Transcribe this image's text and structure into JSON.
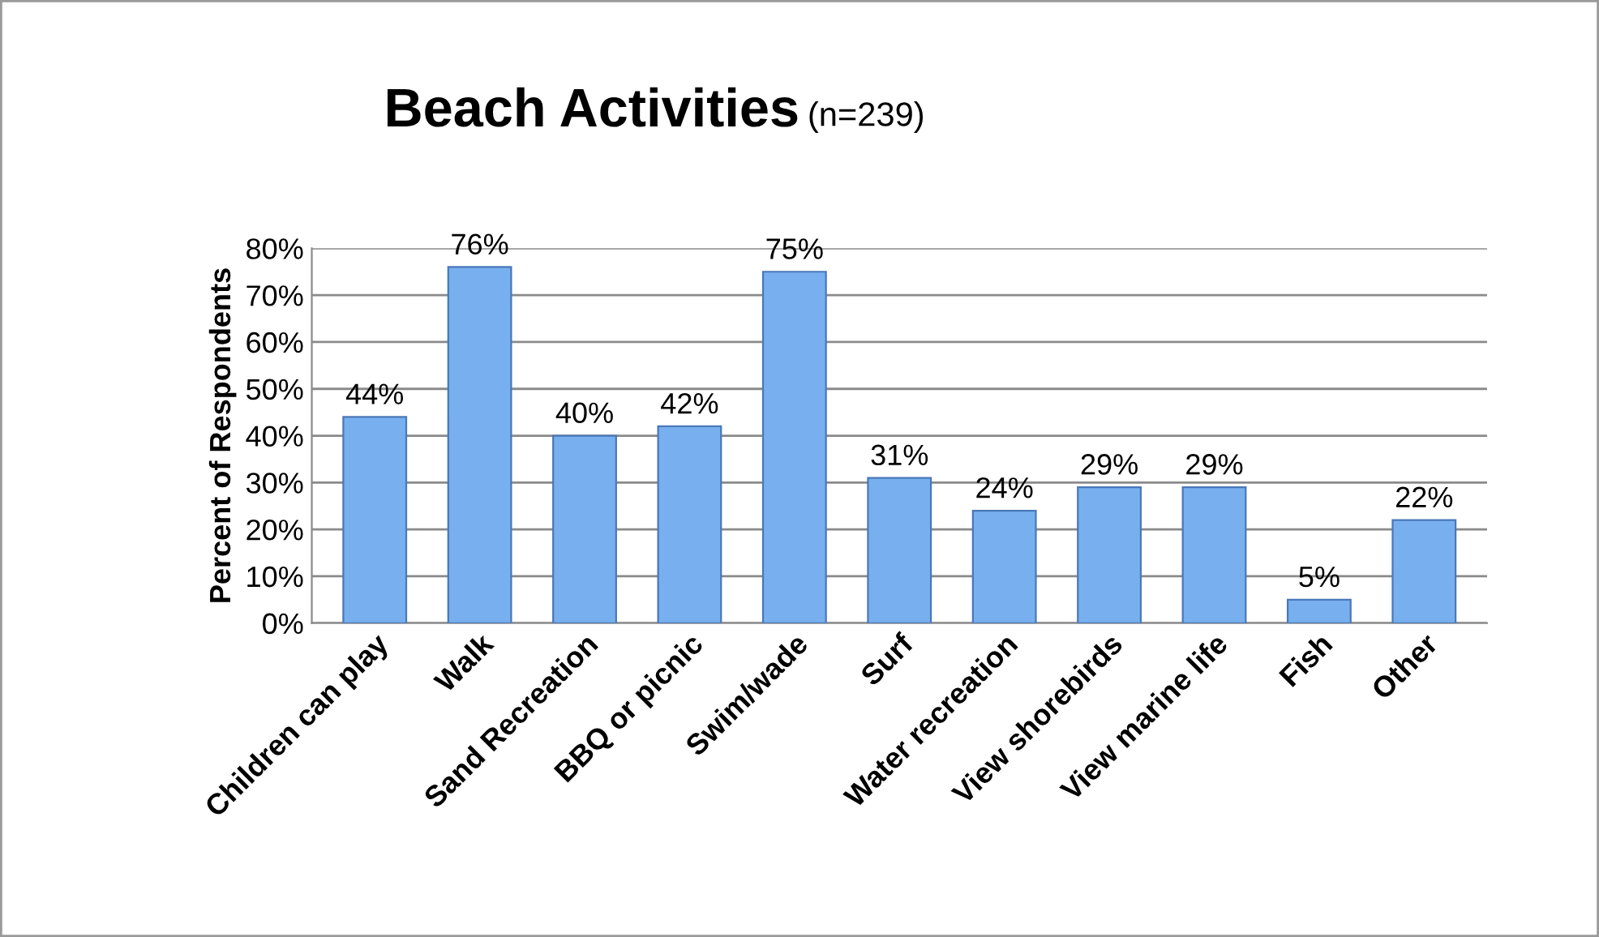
{
  "chart_data": {
    "type": "bar",
    "title": "Beach Activities",
    "subtitle": "(n=239)",
    "ylabel": "Percent of Respondents",
    "categories": [
      "Children can play",
      "Walk",
      "Sand Recreation",
      "BBQ or picnic",
      "Swim/wade",
      "Surf",
      "Water recreation",
      "View shorebirds",
      "View marine life",
      "Fish",
      "Other"
    ],
    "values": [
      44,
      76,
      40,
      42,
      75,
      31,
      24,
      29,
      29,
      5,
      22
    ],
    "value_labels": [
      "44%",
      "76%",
      "40%",
      "42%",
      "75%",
      "31%",
      "24%",
      "29%",
      "29%",
      "5%",
      "22%"
    ],
    "color": "#78b0ef",
    "ylim": [
      0,
      80
    ],
    "yticks": [
      {
        "value": 0,
        "label": "0%"
      },
      {
        "value": 10,
        "label": "10%"
      },
      {
        "value": 20,
        "label": "20%"
      },
      {
        "value": 30,
        "label": "30%"
      },
      {
        "value": 40,
        "label": "40%"
      },
      {
        "value": 50,
        "label": "50%"
      },
      {
        "value": 60,
        "label": "60%"
      },
      {
        "value": 70,
        "label": "70%"
      },
      {
        "value": 80,
        "label": "80%"
      }
    ],
    "grid": "y",
    "legend": false
  }
}
